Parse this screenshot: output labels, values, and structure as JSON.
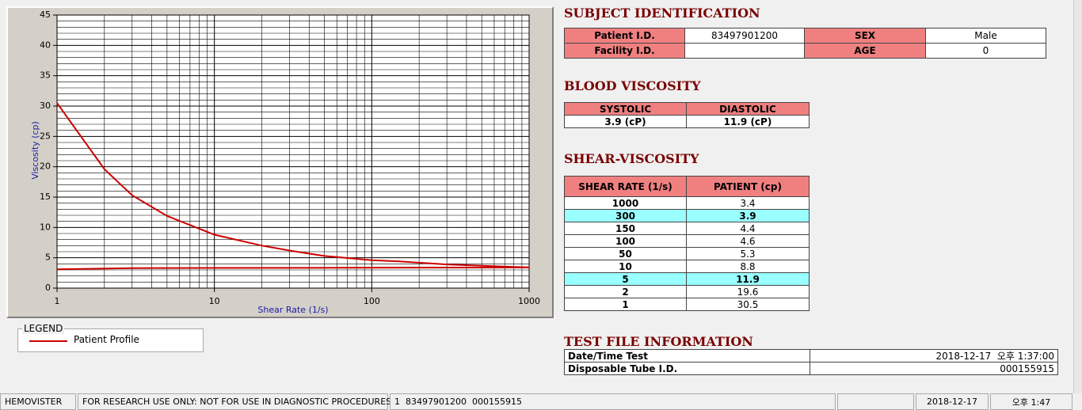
{
  "chart_data": {
    "type": "line",
    "x_label": "Shear Rate (1/s)",
    "y_label": "Viscosity (cp)",
    "x_log": true,
    "xlim": [
      1,
      1000
    ],
    "xticks": [
      1,
      10,
      100,
      1000
    ],
    "ylim": [
      0,
      45
    ],
    "yticks": [
      0,
      5,
      10,
      15,
      20,
      25,
      30,
      35,
      40,
      45
    ],
    "grid": true,
    "xminor": [
      2,
      3,
      4,
      5,
      6,
      7,
      8,
      9,
      20,
      30,
      40,
      50,
      60,
      70,
      80,
      90,
      200,
      300,
      400,
      500,
      600,
      700,
      800,
      900
    ],
    "yminor": [
      1,
      2,
      3,
      4,
      6,
      7,
      8,
      9,
      11,
      12,
      13,
      14,
      16,
      17,
      18,
      19,
      21,
      22,
      23,
      24,
      26,
      27,
      28,
      29,
      31,
      32,
      33,
      34,
      36,
      37,
      38,
      39,
      41,
      42,
      43,
      44
    ],
    "series": [
      {
        "name": "Patient Profile",
        "color": "#cc0000",
        "x": [
          1,
          2,
          3,
          5,
          10,
          20,
          30,
          50,
          100,
          150,
          300,
          1000
        ],
        "values": [
          30.5,
          19.6,
          15.3,
          11.9,
          8.8,
          7.0,
          6.2,
          5.3,
          4.6,
          4.4,
          3.9,
          3.4
        ]
      },
      {
        "color": "#cc0000",
        "x": [
          1,
          3,
          1000
        ],
        "values": [
          3.1,
          3.3,
          3.4
        ]
      }
    ]
  },
  "legend": {
    "title": "LEGEND"
  },
  "subject_identification": {
    "title": "SUBJECT IDENTIFICATION",
    "rows": [
      [
        "Patient I.D.",
        "83497901200",
        "SEX",
        "Male"
      ],
      [
        "Facility I.D.",
        null,
        "AGE",
        "0"
      ]
    ]
  },
  "blood_viscosity": {
    "title": "BLOOD VISCOSITY",
    "headers": [
      "SYSTOLIC",
      "DIASTOLIC"
    ],
    "values": [
      "3.9 (cP)",
      "11.9 (cP)"
    ]
  },
  "shear_viscosity": {
    "title": "SHEAR-VISCOSITY",
    "headers": [
      "SHEAR RATE (1/s)",
      "PATIENT (cp)"
    ],
    "rows": [
      [
        1000,
        3.4
      ],
      [
        300,
        3.9
      ],
      [
        150,
        4.4
      ],
      [
        100,
        4.6
      ],
      [
        50,
        5.3
      ],
      [
        10,
        8.8
      ],
      [
        5,
        11.9
      ],
      [
        2,
        19.6
      ],
      [
        1,
        30.5
      ]
    ],
    "highlighted_rows": [
      1,
      6
    ]
  },
  "test_file": {
    "title": "TEST FILE INFORMATION",
    "rows": [
      [
        "Date/Time Test",
        "2018-12-17  오후 1:37:00"
      ],
      [
        "Disposable Tube I.D.",
        "000155915"
      ]
    ]
  },
  "status_bar": [
    "HEMOVISTER",
    "FOR RESEARCH USE ONLY: NOT FOR USE IN DIAGNOSTIC PROCEDURES",
    "1  83497901200  000155915",
    null,
    "2018-12-17",
    "오후 1:47"
  ]
}
